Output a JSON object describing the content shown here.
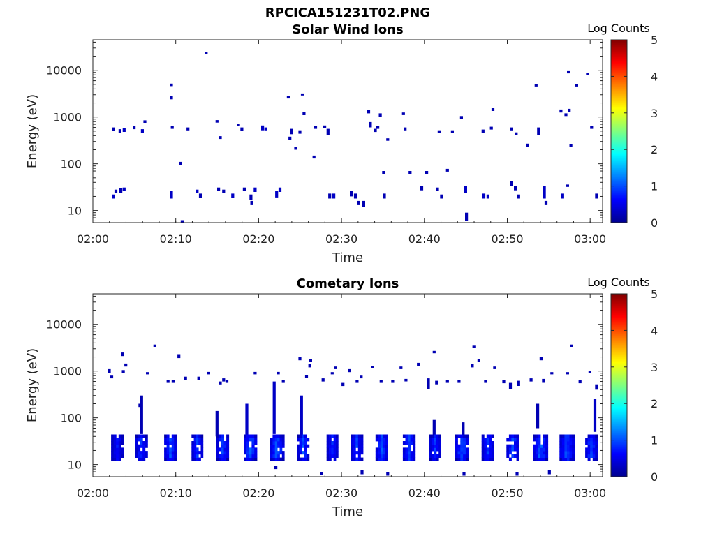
{
  "figure": {
    "title": "RPCICA151231T02.PNG"
  },
  "colormap": {
    "name": "jet",
    "stops": [
      "#00008f",
      "#0000ff",
      "#00ffff",
      "#ffff00",
      "#ff0000",
      "#800000"
    ],
    "label": "Log Counts",
    "ticks": [
      "0",
      "1",
      "2",
      "3",
      "4",
      "5"
    ],
    "range": [
      0,
      5
    ]
  },
  "chart_data": [
    {
      "type": "heatmap",
      "title": "Solar Wind Ions",
      "xlabel": "Time",
      "ylabel": "Energy (eV)",
      "yscale": "log",
      "ylim": [
        5.5,
        45000
      ],
      "xlim_minutes": [
        0,
        61.5
      ],
      "xtick_labels": [
        "02:00",
        "02:10",
        "02:20",
        "02:30",
        "02:40",
        "02:50",
        "03:00"
      ],
      "xtick_minutes": [
        0,
        10,
        20,
        30,
        40,
        50,
        60
      ],
      "ytick_labels": [
        "10",
        "100",
        "1000",
        "10000"
      ],
      "ytick_values": [
        10,
        100,
        1000,
        10000
      ],
      "cells": [
        [
          2.3,
          18,
          22,
          0.3
        ],
        [
          2.6,
          24,
          28,
          0.2
        ],
        [
          3.2,
          24,
          30,
          0.2
        ],
        [
          3.6,
          26,
          31,
          0.3
        ],
        [
          9.3,
          18,
          26,
          0.3
        ],
        [
          12.4,
          24,
          28,
          0.3
        ],
        [
          12.8,
          19,
          23,
          0.2
        ],
        [
          15.0,
          26,
          31,
          0.2
        ],
        [
          15.6,
          24,
          28,
          0.2
        ],
        [
          16.7,
          19,
          23,
          0.3
        ],
        [
          18.1,
          26,
          31,
          0.2
        ],
        [
          18.9,
          17,
          22,
          0.2
        ],
        [
          19.0,
          13,
          16,
          0.2
        ],
        [
          19.4,
          25,
          31,
          0.3
        ],
        [
          22.0,
          19,
          26,
          0.3
        ],
        [
          22.4,
          25,
          31,
          0.3
        ],
        [
          28.4,
          18,
          23,
          0.2
        ],
        [
          28.9,
          18,
          23,
          0.3
        ],
        [
          31.0,
          20,
          26,
          0.2
        ],
        [
          31.5,
          18,
          23,
          0.2
        ],
        [
          31.9,
          13,
          16,
          0.2
        ],
        [
          32.5,
          12,
          16,
          0.2
        ],
        [
          35.0,
          18,
          23,
          0.2
        ],
        [
          39.5,
          27,
          33,
          0.2
        ],
        [
          41.4,
          26,
          31,
          0.2
        ],
        [
          41.9,
          18,
          22,
          0.2
        ],
        [
          44.8,
          24,
          33,
          0.3
        ],
        [
          44.9,
          6,
          9,
          0.2
        ],
        [
          47.0,
          18,
          23,
          0.3
        ],
        [
          47.5,
          18,
          22,
          0.3
        ],
        [
          50.3,
          34,
          42,
          0.2
        ],
        [
          50.8,
          27,
          33,
          0.2
        ],
        [
          51.2,
          18,
          22,
          0.2
        ],
        [
          54.3,
          18,
          33,
          0.3
        ],
        [
          54.5,
          13,
          16,
          0.2
        ],
        [
          56.5,
          18,
          23,
          0.3
        ],
        [
          57.1,
          32,
          36,
          0.2
        ],
        [
          60.6,
          18,
          23,
          0.2
        ],
        [
          2.3,
          500,
          600,
          0.2
        ],
        [
          3.1,
          450,
          550,
          0.2
        ],
        [
          3.6,
          480,
          580,
          0.3
        ],
        [
          4.8,
          550,
          650,
          0.2
        ],
        [
          5.8,
          450,
          550,
          0.3
        ],
        [
          6.1,
          750,
          850,
          0.2
        ],
        [
          9.3,
          4600,
          5200,
          0.2
        ],
        [
          9.3,
          2400,
          2800,
          0.2
        ],
        [
          9.4,
          560,
          640,
          0.2
        ],
        [
          10.4,
          95,
          110,
          0.2
        ],
        [
          11.3,
          520,
          600,
          0.2
        ],
        [
          13.5,
          22000,
          25000,
          0.2
        ],
        [
          14.8,
          760,
          860,
          0.2
        ],
        [
          15.2,
          340,
          390,
          0.2
        ],
        [
          17.4,
          640,
          720,
          0.2
        ],
        [
          17.8,
          500,
          600,
          0.2
        ],
        [
          20.3,
          520,
          660,
          0.3
        ],
        [
          20.7,
          520,
          600,
          0.3
        ],
        [
          23.4,
          2500,
          2800,
          0.2
        ],
        [
          23.6,
          320,
          380,
          0.2
        ],
        [
          23.8,
          430,
          560,
          0.2
        ],
        [
          24.3,
          200,
          230,
          0.2
        ],
        [
          24.8,
          440,
          520,
          0.2
        ],
        [
          25.1,
          2900,
          3200,
          0.2
        ],
        [
          25.3,
          1100,
          1300,
          0.2
        ],
        [
          26.5,
          130,
          150,
          0.2
        ],
        [
          26.7,
          560,
          640,
          0.2
        ],
        [
          27.8,
          580,
          660,
          0.2
        ],
        [
          28.2,
          420,
          560,
          0.2
        ],
        [
          33.1,
          1200,
          1400,
          0.2
        ],
        [
          33.3,
          600,
          780,
          0.2
        ],
        [
          33.9,
          480,
          560,
          0.2
        ],
        [
          34.2,
          560,
          640,
          0.2
        ],
        [
          34.5,
          1000,
          1200,
          0.2
        ],
        [
          34.9,
          60,
          70,
          0.2
        ],
        [
          35.4,
          310,
          350,
          0.2
        ],
        [
          37.3,
          1100,
          1250,
          0.2
        ],
        [
          37.5,
          520,
          600,
          0.2
        ],
        [
          38.1,
          60,
          70,
          0.2
        ],
        [
          40.1,
          60,
          70,
          0.2
        ],
        [
          41.6,
          450,
          520,
          0.2
        ],
        [
          42.6,
          68,
          78,
          0.2
        ],
        [
          43.2,
          450,
          520,
          0.2
        ],
        [
          44.3,
          900,
          1050,
          0.2
        ],
        [
          46.9,
          460,
          540,
          0.2
        ],
        [
          47.9,
          540,
          620,
          0.2
        ],
        [
          48.1,
          1350,
          1550,
          0.2
        ],
        [
          50.3,
          520,
          600,
          0.2
        ],
        [
          50.9,
          410,
          470,
          0.2
        ],
        [
          52.3,
          230,
          270,
          0.2
        ],
        [
          53.3,
          4500,
          5100,
          0.2
        ],
        [
          53.6,
          420,
          600,
          0.2
        ],
        [
          56.3,
          1250,
          1450,
          0.2
        ],
        [
          56.9,
          1050,
          1200,
          0.2
        ],
        [
          57.3,
          1300,
          1500,
          0.2
        ],
        [
          57.2,
          8600,
          9600,
          0.2
        ],
        [
          57.5,
          230,
          260,
          0.2
        ],
        [
          58.2,
          4500,
          5100,
          0.2
        ],
        [
          59.5,
          8000,
          8900,
          0.2
        ],
        [
          60.0,
          560,
          640,
          0.2
        ],
        [
          10.6,
          5.6,
          6.2,
          0.2
        ]
      ]
    },
    {
      "type": "heatmap",
      "title": "Cometary Ions",
      "xlabel": "Time",
      "ylabel": "Energy (eV)",
      "yscale": "log",
      "ylim": [
        5.5,
        45000
      ],
      "xlim_minutes": [
        0,
        61.5
      ],
      "xtick_labels": [
        "02:00",
        "02:10",
        "02:20",
        "02:30",
        "02:40",
        "02:50",
        "03:00"
      ],
      "xtick_minutes": [
        0,
        10,
        20,
        30,
        40,
        50,
        60
      ],
      "ytick_labels": [
        "10",
        "100",
        "1000",
        "10000"
      ],
      "ytick_values": [
        10,
        100,
        1000,
        10000
      ],
      "bursts": [
        [
          2.2,
          3.7,
          0.8,
          0.3
        ],
        [
          5.1,
          6.6,
          1.0,
          0.8
        ],
        [
          8.6,
          10.1,
          1.1,
          0.7
        ],
        [
          11.9,
          13.3,
          1.0,
          0.6
        ],
        [
          14.9,
          16.4,
          1.1,
          0.7
        ],
        [
          18.2,
          19.8,
          1.2,
          0.9
        ],
        [
          21.4,
          23.1,
          1.2,
          0.9
        ],
        [
          24.6,
          26.1,
          1.1,
          0.8
        ],
        [
          28.2,
          29.6,
          0.9,
          0.3
        ],
        [
          31.1,
          32.6,
          1.0,
          0.4
        ],
        [
          34.1,
          35.6,
          1.2,
          0.4
        ],
        [
          37.4,
          38.9,
          1.1,
          0.3
        ],
        [
          40.6,
          42.0,
          1.0,
          0.7
        ],
        [
          43.7,
          45.3,
          1.2,
          0.9
        ],
        [
          46.9,
          48.4,
          1.0,
          0.4
        ],
        [
          49.9,
          51.4,
          1.1,
          0.6
        ],
        [
          53.1,
          54.9,
          1.3,
          0.9
        ],
        [
          56.3,
          58.1,
          1.2,
          0.7
        ],
        [
          59.4,
          60.9,
          1.1,
          0.9
        ]
      ],
      "cells": [
        [
          5.7,
          45,
          300,
          0.2
        ],
        [
          21.7,
          45,
          600,
          0.3
        ],
        [
          25.0,
          40,
          300,
          0.3
        ],
        [
          18.4,
          40,
          200,
          0.3
        ],
        [
          14.8,
          40,
          140,
          0.2
        ],
        [
          41.0,
          40,
          90,
          0.2
        ],
        [
          44.5,
          30,
          80,
          0.2
        ],
        [
          53.5,
          60,
          200,
          0.2
        ],
        [
          60.4,
          50,
          250,
          0.3
        ],
        [
          3.4,
          2100,
          2500,
          0.2
        ],
        [
          7.3,
          3300,
          3700,
          0.2
        ],
        [
          10.2,
          1900,
          2300,
          0.2
        ],
        [
          24.8,
          1700,
          2000,
          0.2
        ],
        [
          26.1,
          1550,
          1800,
          0.2
        ],
        [
          41.0,
          2400,
          2700,
          0.2
        ],
        [
          45.8,
          3100,
          3500,
          0.2
        ],
        [
          57.6,
          3300,
          3700,
          0.2
        ],
        [
          53.9,
          1700,
          2000,
          0.2
        ],
        [
          1.8,
          900,
          1100,
          0.2
        ],
        [
          2.1,
          700,
          800,
          0.2
        ],
        [
          3.5,
          900,
          1050,
          0.2
        ],
        [
          6.4,
          850,
          950,
          0.2
        ],
        [
          8.9,
          560,
          640,
          0.2
        ],
        [
          9.5,
          560,
          640,
          0.2
        ],
        [
          11.0,
          650,
          760,
          0.2
        ],
        [
          12.6,
          650,
          760,
          0.2
        ],
        [
          13.8,
          850,
          960,
          0.2
        ],
        [
          15.2,
          520,
          600,
          0.2
        ],
        [
          16.0,
          560,
          640,
          0.2
        ],
        [
          19.4,
          850,
          960,
          0.2
        ],
        [
          22.2,
          850,
          960,
          0.2
        ],
        [
          22.8,
          560,
          640,
          0.2
        ],
        [
          25.6,
          720,
          820,
          0.2
        ],
        [
          26.0,
          1200,
          1400,
          0.2
        ],
        [
          27.6,
          600,
          700,
          0.2
        ],
        [
          28.7,
          850,
          950,
          0.2
        ],
        [
          29.1,
          1100,
          1250,
          0.2
        ],
        [
          30.0,
          480,
          560,
          0.2
        ],
        [
          30.8,
          950,
          1100,
          0.2
        ],
        [
          31.7,
          560,
          640,
          0.2
        ],
        [
          32.2,
          700,
          800,
          0.2
        ],
        [
          33.6,
          1150,
          1300,
          0.2
        ],
        [
          34.6,
          560,
          640,
          0.2
        ],
        [
          36.0,
          560,
          640,
          0.2
        ],
        [
          37.0,
          1100,
          1250,
          0.2
        ],
        [
          37.6,
          600,
          680,
          0.2
        ],
        [
          39.1,
          1300,
          1500,
          0.2
        ],
        [
          40.3,
          420,
          700,
          0.2
        ],
        [
          41.3,
          520,
          620,
          0.2
        ],
        [
          42.6,
          560,
          640,
          0.2
        ],
        [
          44.0,
          560,
          640,
          0.2
        ],
        [
          45.6,
          1200,
          1400,
          0.2
        ],
        [
          47.2,
          560,
          640,
          0.2
        ],
        [
          48.3,
          1100,
          1250,
          0.2
        ],
        [
          49.4,
          550,
          650,
          0.2
        ],
        [
          50.2,
          420,
          560,
          0.2
        ],
        [
          51.2,
          480,
          620,
          0.2
        ],
        [
          52.7,
          600,
          700,
          0.2
        ],
        [
          54.2,
          560,
          680,
          0.2
        ],
        [
          55.2,
          850,
          950,
          0.2
        ],
        [
          57.1,
          850,
          950,
          0.2
        ],
        [
          58.6,
          550,
          650,
          0.2
        ],
        [
          59.8,
          900,
          1000,
          0.2
        ],
        [
          60.6,
          400,
          520,
          0.2
        ],
        [
          3.8,
          1250,
          1450,
          0.2
        ],
        [
          46.4,
          1600,
          1800,
          0.2
        ],
        [
          15.6,
          600,
          700,
          0.2
        ],
        [
          5.5,
          170,
          200,
          0.2
        ],
        [
          21.9,
          8,
          9.5,
          0.2
        ],
        [
          35.4,
          5.8,
          7,
          0.2
        ],
        [
          27.4,
          6,
          7,
          0.2
        ],
        [
          32.3,
          6.2,
          7.5,
          0.2
        ],
        [
          44.6,
          5.8,
          7,
          0.2
        ],
        [
          51.0,
          5.8,
          7,
          0.2
        ],
        [
          54.9,
          6.2,
          7.5,
          0.2
        ]
      ]
    }
  ]
}
